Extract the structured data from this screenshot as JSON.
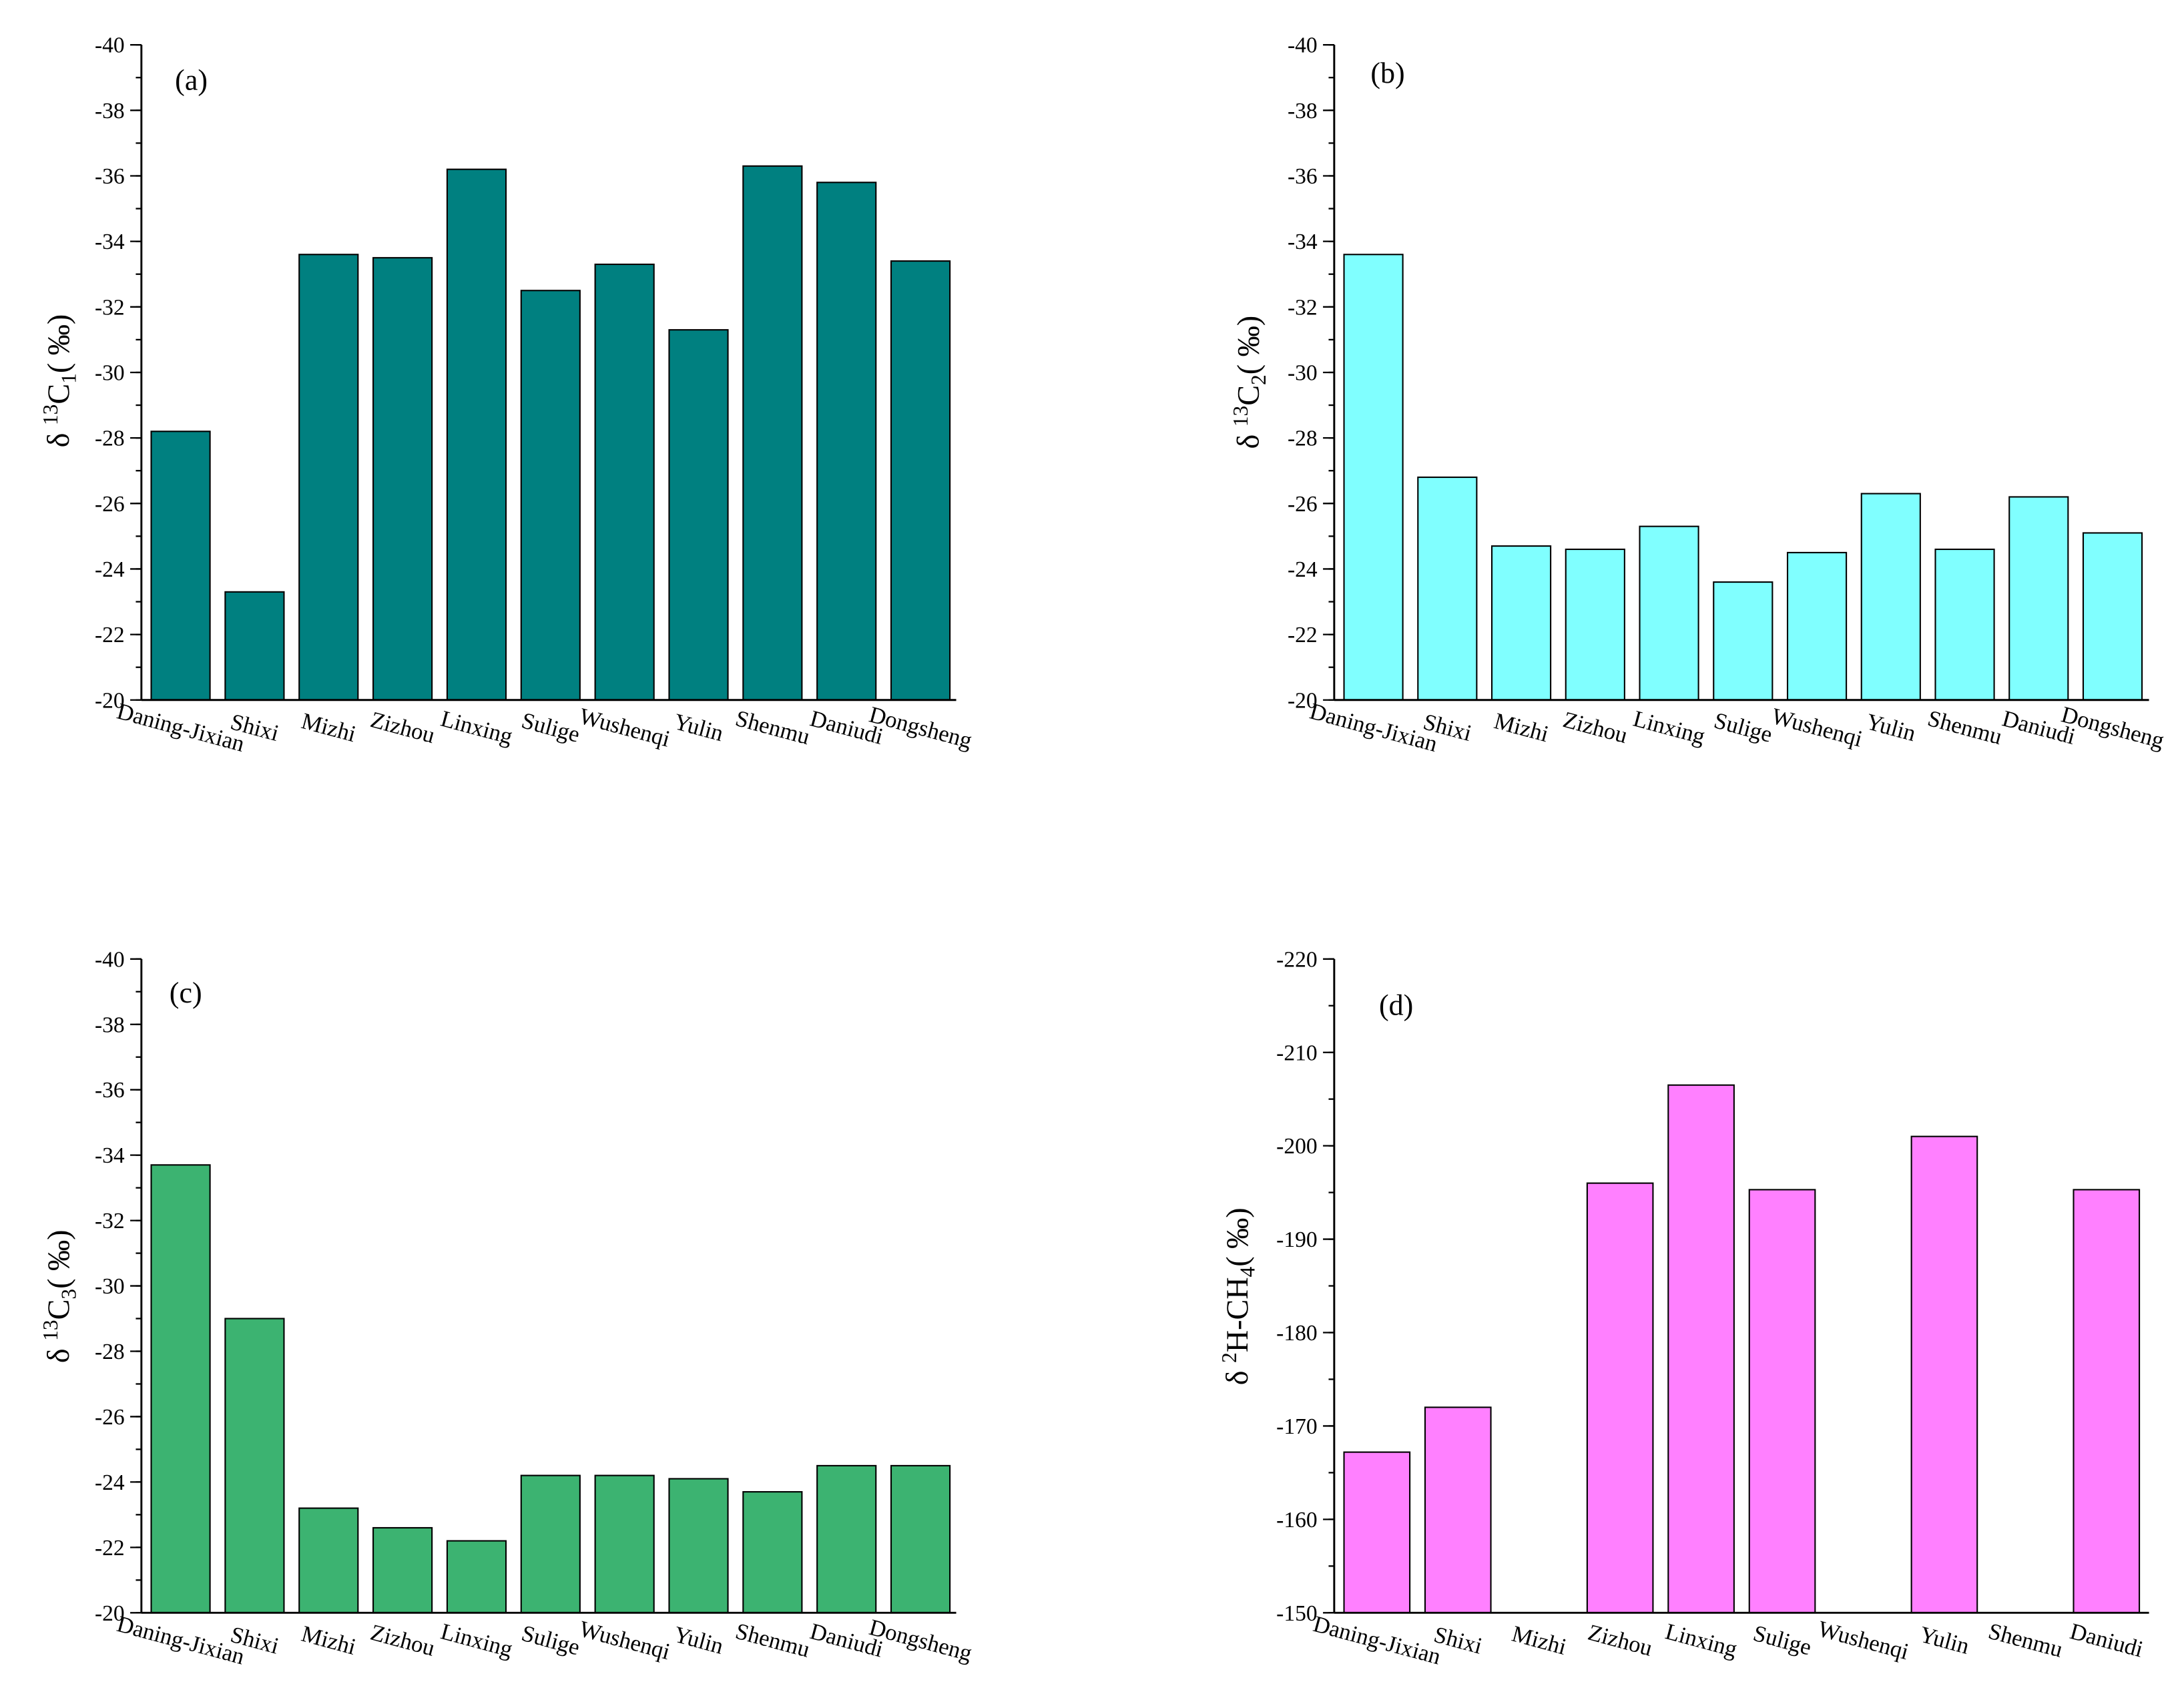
{
  "chart_data": [
    {
      "type": "bar",
      "panel_label": "(a)",
      "categories": [
        "Daning-Jixian",
        "Shixi",
        "Mizhi",
        "Zizhou",
        "Linxing",
        "Sulige",
        "Wushenqi",
        "Yulin",
        "Shenmu",
        "Daniudi",
        "Dongsheng"
      ],
      "values": [
        -28.2,
        -23.3,
        -33.6,
        -33.5,
        -36.2,
        -32.5,
        -33.3,
        -31.3,
        -36.3,
        -35.8,
        -33.4
      ],
      "ylabel": {
        "pre": "δ ",
        "sup": "13",
        "main": "C",
        "sub": "1",
        "post": "( ‰)"
      },
      "ylim": [
        -20,
        -40
      ],
      "yticks": [
        -40,
        -38,
        -36,
        -34,
        -32,
        -30,
        -28,
        -26,
        -24,
        -22,
        -20
      ],
      "ytick_minor_step": 1,
      "color": "#008080"
    },
    {
      "type": "bar",
      "panel_label": "(b)",
      "categories": [
        "Daning-Jixian",
        "Shixi",
        "Mizhi",
        "Zizhou",
        "Linxing",
        "Sulige",
        "Wushenqi",
        "Yulin",
        "Shenmu",
        "Daniudi",
        "Dongsheng"
      ],
      "values": [
        -33.6,
        -26.8,
        -24.7,
        -24.6,
        -25.3,
        -23.6,
        -24.5,
        -26.3,
        -24.6,
        -26.2,
        -25.1
      ],
      "ylabel": {
        "pre": "δ ",
        "sup": "13",
        "main": "C",
        "sub": "2",
        "post": "( ‰)"
      },
      "ylim": [
        -20,
        -40
      ],
      "yticks": [
        -40,
        -38,
        -36,
        -34,
        -32,
        -30,
        -28,
        -26,
        -24,
        -22,
        -20
      ],
      "ytick_minor_step": 1,
      "color": "#80FFFF"
    },
    {
      "type": "bar",
      "panel_label": "(c)",
      "categories": [
        "Daning-Jixian",
        "Shixi",
        "Mizhi",
        "Zizhou",
        "Linxing",
        "Sulige",
        "Wushenqi",
        "Yulin",
        "Shenmu",
        "Daniudi",
        "Dongsheng"
      ],
      "values": [
        -33.7,
        -29.0,
        -23.2,
        -22.6,
        -22.2,
        -24.2,
        -24.2,
        -24.1,
        -23.7,
        -24.5,
        -24.5
      ],
      "ylabel": {
        "pre": "δ ",
        "sup": "13",
        "main": "C",
        "sub": "3",
        "post": "( ‰)"
      },
      "ylim": [
        -20,
        -40
      ],
      "yticks": [
        -40,
        -38,
        -36,
        -34,
        -32,
        -30,
        -28,
        -26,
        -24,
        -22,
        -20
      ],
      "ytick_minor_step": 1,
      "color": "#3CB371"
    },
    {
      "type": "bar",
      "panel_label": "(d)",
      "categories": [
        "Daning-Jixian",
        "Shixi",
        "Mizhi",
        "Zizhou",
        "Linxing",
        "Sulige",
        "Wushenqi",
        "Yulin",
        "Shenmu",
        "Daniudi"
      ],
      "values": [
        -167.2,
        -172.0,
        null,
        -196.0,
        -206.5,
        -195.3,
        null,
        -201.0,
        null,
        -195.3
      ],
      "ylabel": {
        "pre": "δ ",
        "sup": "2",
        "main": "H-CH",
        "sub": "4",
        "post": "( ‰)"
      },
      "ylim": [
        -150,
        -220
      ],
      "yticks": [
        -220,
        -210,
        -200,
        -190,
        -180,
        -170,
        -160,
        -150
      ],
      "ytick_minor_step": 5,
      "color": "#FF80FF"
    }
  ]
}
